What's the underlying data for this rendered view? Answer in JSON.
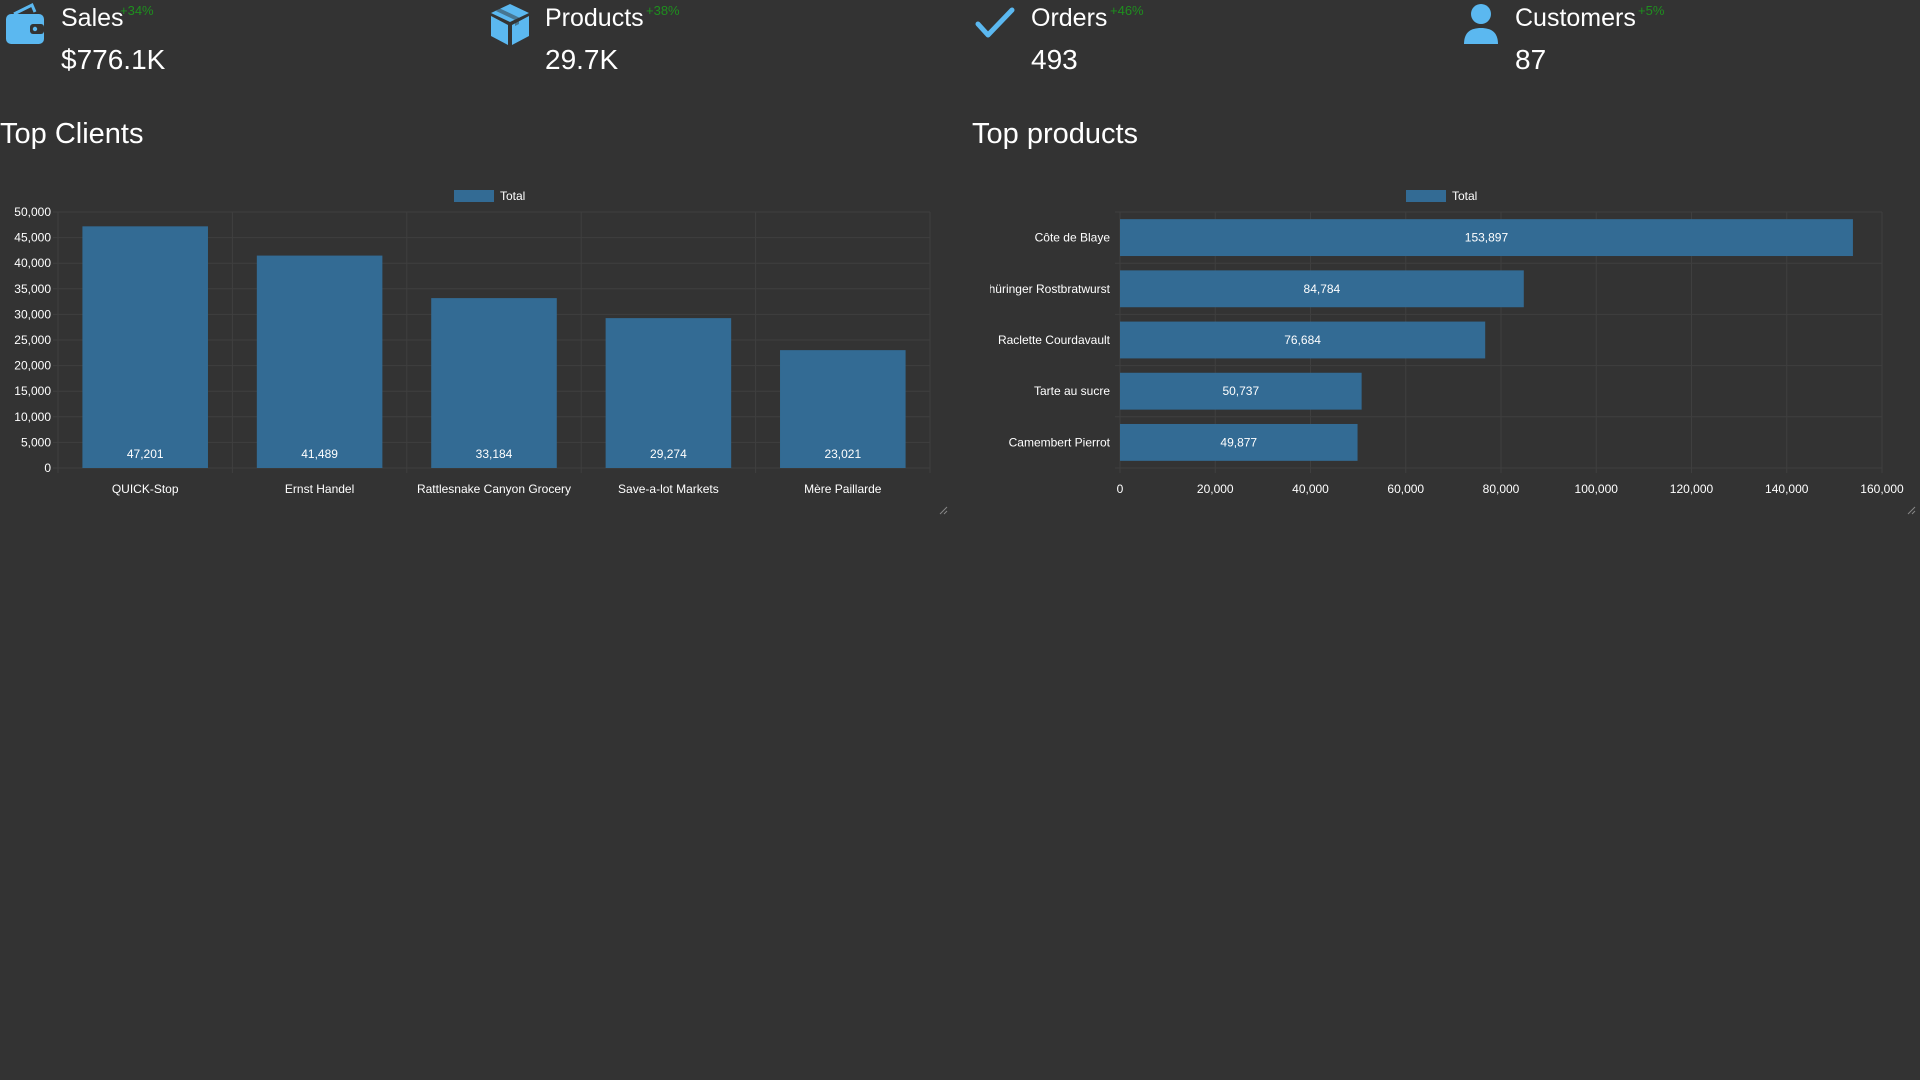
{
  "kpis": [
    {
      "title": "Sales",
      "value": "$776.1K",
      "delta": "+34%",
      "icon": "wallet-icon"
    },
    {
      "title": "Products",
      "value": "29.7K",
      "delta": "+38%",
      "icon": "box-icon"
    },
    {
      "title": "Orders",
      "value": "493",
      "delta": "+46%",
      "icon": "checkmark-icon"
    },
    {
      "title": "Customers",
      "value": "87",
      "delta": "+5%",
      "icon": "user-icon"
    }
  ],
  "colors": {
    "background": "#333333",
    "bar": "#336b94",
    "icon": "#5bb8f0",
    "delta": "#1f8f1f",
    "grid": "#3f3f3f"
  },
  "sections": {
    "top_clients_title": "Top Clients",
    "top_products_title": "Top products"
  },
  "chart_data": [
    {
      "type": "bar",
      "orientation": "vertical",
      "title": "Top Clients",
      "legend": "top-center",
      "series": [
        {
          "name": "Total",
          "values": [
            47201,
            41489,
            33184,
            29274,
            23021
          ]
        }
      ],
      "categories": [
        "QUICK-Stop",
        "Ernst Handel",
        "Rattlesnake Canyon Grocery",
        "Save-a-lot Markets",
        "Mère Paillarde"
      ],
      "value_labels": [
        "47,201",
        "41,489",
        "33,184",
        "29,274",
        "23,021"
      ],
      "ylim": [
        0,
        50000
      ],
      "ticks": [
        "0",
        "5,000",
        "10,000",
        "15,000",
        "20,000",
        "25,000",
        "30,000",
        "35,000",
        "40,000",
        "45,000",
        "50,000"
      ],
      "grid": true
    },
    {
      "type": "bar",
      "orientation": "horizontal",
      "title": "Top products",
      "legend": "top-center",
      "series": [
        {
          "name": "Total",
          "values": [
            153897,
            84784,
            76684,
            50737,
            49877
          ]
        }
      ],
      "categories": [
        "Côte de Blaye",
        "Thüringer Rostbratwurst",
        "Raclette Courdavault",
        "Tarte au sucre",
        "Camembert Pierrot"
      ],
      "value_labels": [
        "153,897",
        "84,784",
        "76,684",
        "50,737",
        "49,877"
      ],
      "xlim": [
        0,
        160000
      ],
      "ticks": [
        "0",
        "20,000",
        "40,000",
        "60,000",
        "80,000",
        "100,000",
        "120,000",
        "140,000",
        "160,000"
      ],
      "grid": true
    }
  ]
}
